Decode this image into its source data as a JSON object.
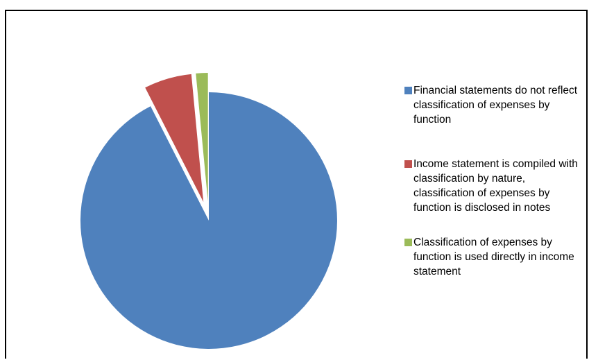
{
  "chart_data": {
    "type": "pie",
    "title": "",
    "exploded": true,
    "start_angle_deg": 0,
    "direction": "clockwise",
    "legend_position": "right",
    "slices": [
      {
        "label": "Financial statements  do not reflect classification of expenses by function",
        "value": 92.5,
        "color": "#4F81BD"
      },
      {
        "label": "Income statement  is compiled with classification  by nature, classification of expenses by function is disclosed in notes",
        "value": 6.0,
        "color": "#C0504D"
      },
      {
        "label": "Classification of expenses by function is used directly in income statement",
        "value": 1.5,
        "color": "#9BBB59"
      }
    ]
  }
}
